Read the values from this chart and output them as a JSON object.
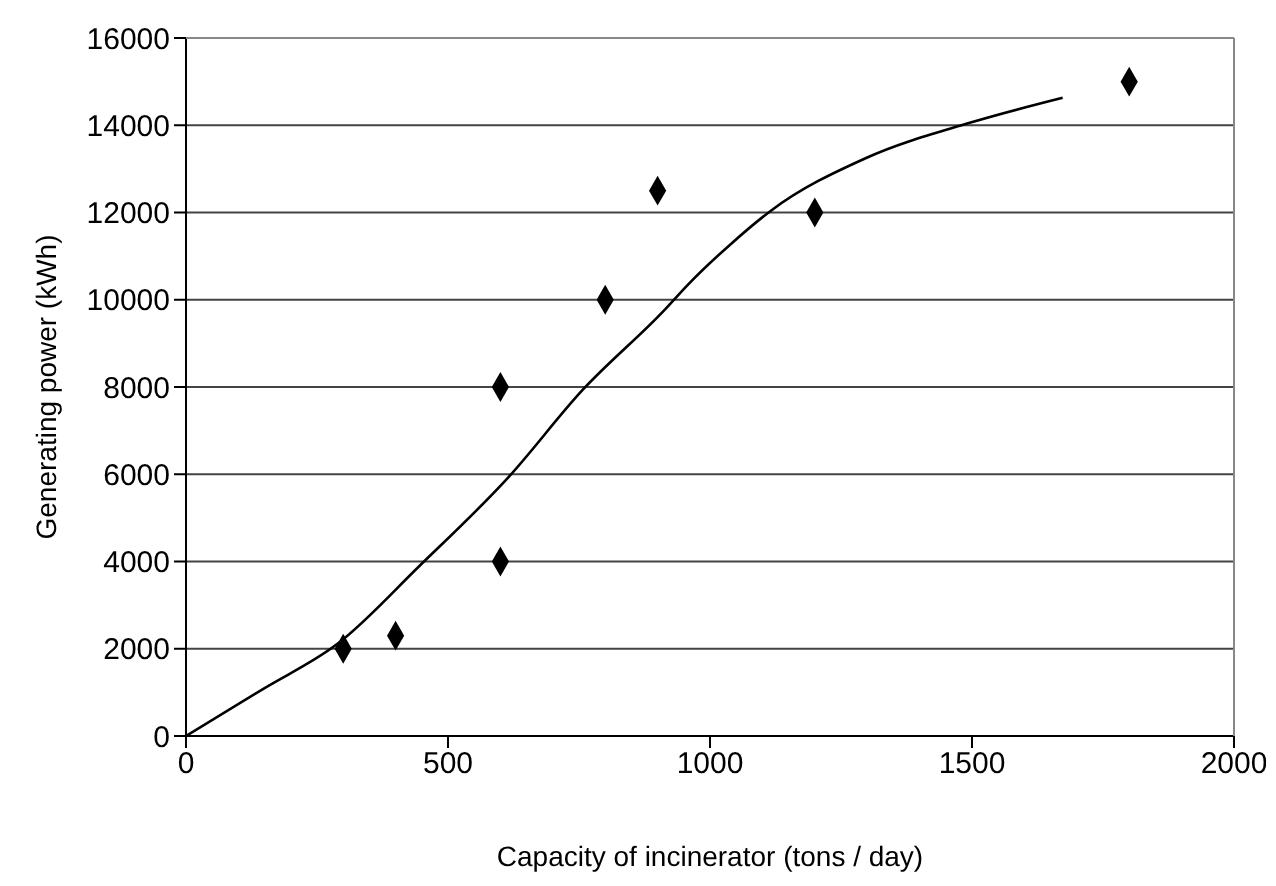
{
  "chart_data": {
    "type": "scatter",
    "xlabel": "Capacity of incinerator (tons / day)",
    "ylabel": "Generating power (kWh)",
    "xlim": [
      0,
      2000
    ],
    "xticks": [
      0,
      500,
      1000,
      1500,
      2000
    ],
    "ylim": [
      0,
      16000
    ],
    "yticks": [
      0,
      2000,
      4000,
      6000,
      8000,
      10000,
      12000,
      14000,
      16000
    ],
    "grid": "y",
    "legend": false,
    "series": [
      {
        "color": "#000000",
        "marker": "diamond",
        "x": [
          300,
          400,
          600,
          600,
          800,
          900,
          1200,
          1800
        ],
        "values": [
          2000,
          2300,
          8000,
          4000,
          10000,
          12500,
          12000,
          15000
        ]
      },
      {
        "type": "line",
        "color": "#000000",
        "marker": "none",
        "line_style": "solid",
        "x": [
          0,
          146,
          291,
          444,
          616,
          756,
          912,
          959,
          1040,
          1115,
          1298,
          1494,
          1673
        ],
        "values": [
          0,
          1070,
          2130,
          3880,
          5940,
          7920,
          9750,
          10360,
          11280,
          12030,
          13250,
          14050,
          14630
        ]
      }
    ]
  }
}
